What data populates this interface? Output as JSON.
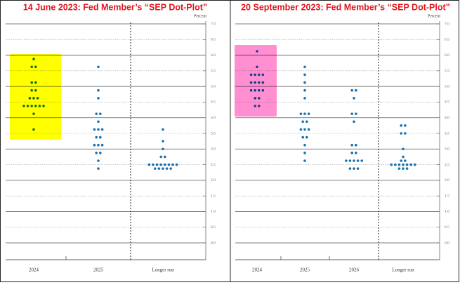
{
  "chart_data": [
    {
      "type": "dotplot",
      "title": "14 June 2023: Fed Member’s “SEP Dot-Plot”",
      "y_label": "Percent",
      "categories": [
        "2024",
        "2025",
        "Longer run"
      ],
      "dots": [
        [
          5.875,
          5.625,
          5.625,
          5.125,
          5.125,
          4.875,
          4.875,
          4.625,
          4.625,
          4.625,
          4.375,
          4.375,
          4.375,
          4.375,
          4.375,
          4.375,
          4.125,
          3.625
        ],
        [
          5.625,
          4.875,
          4.625,
          4.125,
          4.125,
          3.875,
          3.625,
          3.625,
          3.625,
          3.375,
          3.375,
          3.125,
          3.125,
          3.125,
          2.875,
          2.875,
          2.625,
          2.375
        ],
        [
          3.625,
          3.25,
          3.0,
          2.75,
          2.75,
          2.5,
          2.5,
          2.5,
          2.5,
          2.5,
          2.5,
          2.5,
          2.5,
          2.375,
          2.375,
          2.375,
          2.375,
          2.375
        ]
      ],
      "color": "#1a72b0",
      "highlight_color": "#ffff00",
      "ylim": [
        0,
        7
      ],
      "yticks": [
        {
          "value": 0,
          "label": "0.0"
        },
        {
          "value": 0.5,
          "label": "0.5"
        },
        {
          "value": 1,
          "label": "1.0"
        },
        {
          "value": 1.5,
          "label": "1.5"
        },
        {
          "value": 2,
          "label": "2.0"
        },
        {
          "value": 2.5,
          "label": "2.5"
        },
        {
          "value": 3,
          "label": "3.0"
        },
        {
          "value": 3.5,
          "label": "3.5"
        },
        {
          "value": 4,
          "label": "4.0"
        },
        {
          "value": 4.5,
          "label": "4.5"
        },
        {
          "value": 5,
          "label": "5.0"
        },
        {
          "value": 5.5,
          "label": "5.5"
        },
        {
          "value": 6,
          "label": "6.0"
        },
        {
          "value": 6.5,
          "label": "6.5"
        },
        {
          "value": 7,
          "label": "7.0"
        }
      ],
      "grid": true
    },
    {
      "type": "dotplot",
      "title": "20 September 2023: Fed Member’s “SEP Dot-Plot”",
      "y_label": "Percent",
      "categories": [
        "2024",
        "2025",
        "2026",
        "Longer run"
      ],
      "dots": [
        [
          6.125,
          5.625,
          5.375,
          5.375,
          5.375,
          5.375,
          5.125,
          5.125,
          5.125,
          5.125,
          4.875,
          4.875,
          4.875,
          4.875,
          4.625,
          4.625,
          4.375,
          4.375
        ],
        [
          5.625,
          5.375,
          5.125,
          4.875,
          4.625,
          4.125,
          4.125,
          4.125,
          3.875,
          3.875,
          3.625,
          3.625,
          3.625,
          3.375,
          3.375,
          3.125,
          2.875,
          2.625
        ],
        [
          4.875,
          4.875,
          4.625,
          4.125,
          4.125,
          3.875,
          3.125,
          3.125,
          2.875,
          2.875,
          2.625,
          2.625,
          2.625,
          2.625,
          2.625,
          2.375,
          2.375,
          2.375
        ],
        [
          3.75,
          3.75,
          3.5,
          3.5,
          3.0,
          2.75,
          2.625,
          2.625,
          2.5,
          2.5,
          2.5,
          2.5,
          2.5,
          2.5,
          2.5,
          2.375,
          2.375,
          2.375
        ]
      ],
      "color": "#1a72b0",
      "highlight_color": "#ff8fd0",
      "ylim": [
        0,
        7
      ],
      "yticks": [
        {
          "value": 0,
          "label": "0.0"
        },
        {
          "value": 0.5,
          "label": "0.5"
        },
        {
          "value": 1,
          "label": "1.0"
        },
        {
          "value": 1.5,
          "label": "1.5"
        },
        {
          "value": 2,
          "label": "2.0"
        },
        {
          "value": 2.5,
          "label": "2.5"
        },
        {
          "value": 3,
          "label": "3.0"
        },
        {
          "value": 3.5,
          "label": "3.5"
        },
        {
          "value": 4,
          "label": "4.0"
        },
        {
          "value": 4.5,
          "label": "4.5"
        },
        {
          "value": 5,
          "label": "5.0"
        },
        {
          "value": 5.5,
          "label": "5.5"
        },
        {
          "value": 6,
          "label": "6.0"
        },
        {
          "value": 6.5,
          "label": "6.5"
        },
        {
          "value": 7,
          "label": "7.0"
        }
      ],
      "grid": true
    }
  ]
}
